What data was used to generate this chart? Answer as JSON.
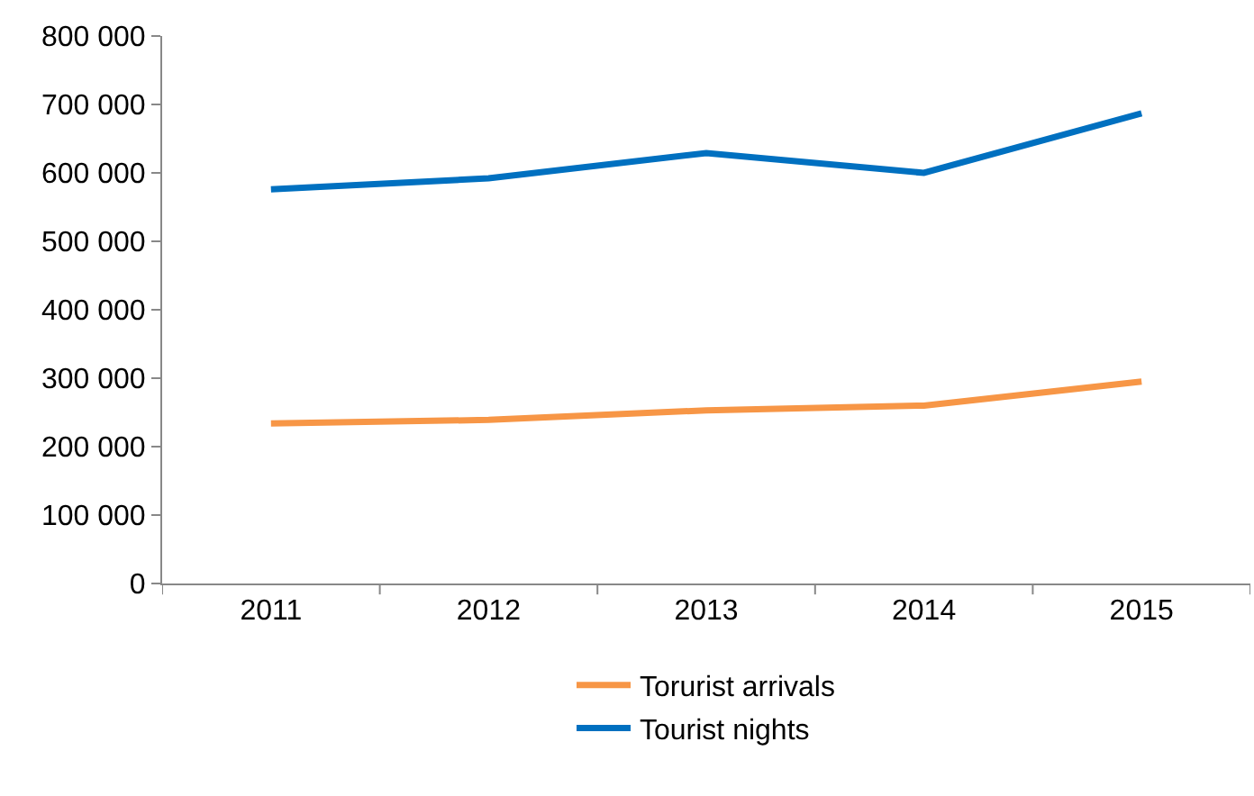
{
  "chart_data": {
    "type": "line",
    "categories": [
      "2011",
      "2012",
      "2013",
      "2014",
      "2015"
    ],
    "series": [
      {
        "name": "Torurist arrivals",
        "color": "#f79646",
        "values": [
          234000,
          239000,
          253000,
          260000,
          295000
        ]
      },
      {
        "name": "Tourist nights",
        "color": "#0070c0",
        "values": [
          576000,
          592000,
          629000,
          600000,
          687000
        ]
      }
    ],
    "ylim": [
      0,
      800000
    ],
    "yticks": [
      {
        "value": 0,
        "label": "0"
      },
      {
        "value": 100000,
        "label": "100 000"
      },
      {
        "value": 200000,
        "label": "200 000"
      },
      {
        "value": 300000,
        "label": "300 000"
      },
      {
        "value": 400000,
        "label": "400 000"
      },
      {
        "value": 500000,
        "label": "500 000"
      },
      {
        "value": 600000,
        "label": "600 000"
      },
      {
        "value": 700000,
        "label": "700 000"
      },
      {
        "value": 800000,
        "label": "800 000"
      }
    ],
    "grid": false,
    "legend": "bottom",
    "marker": "none",
    "line_style": "solid"
  }
}
